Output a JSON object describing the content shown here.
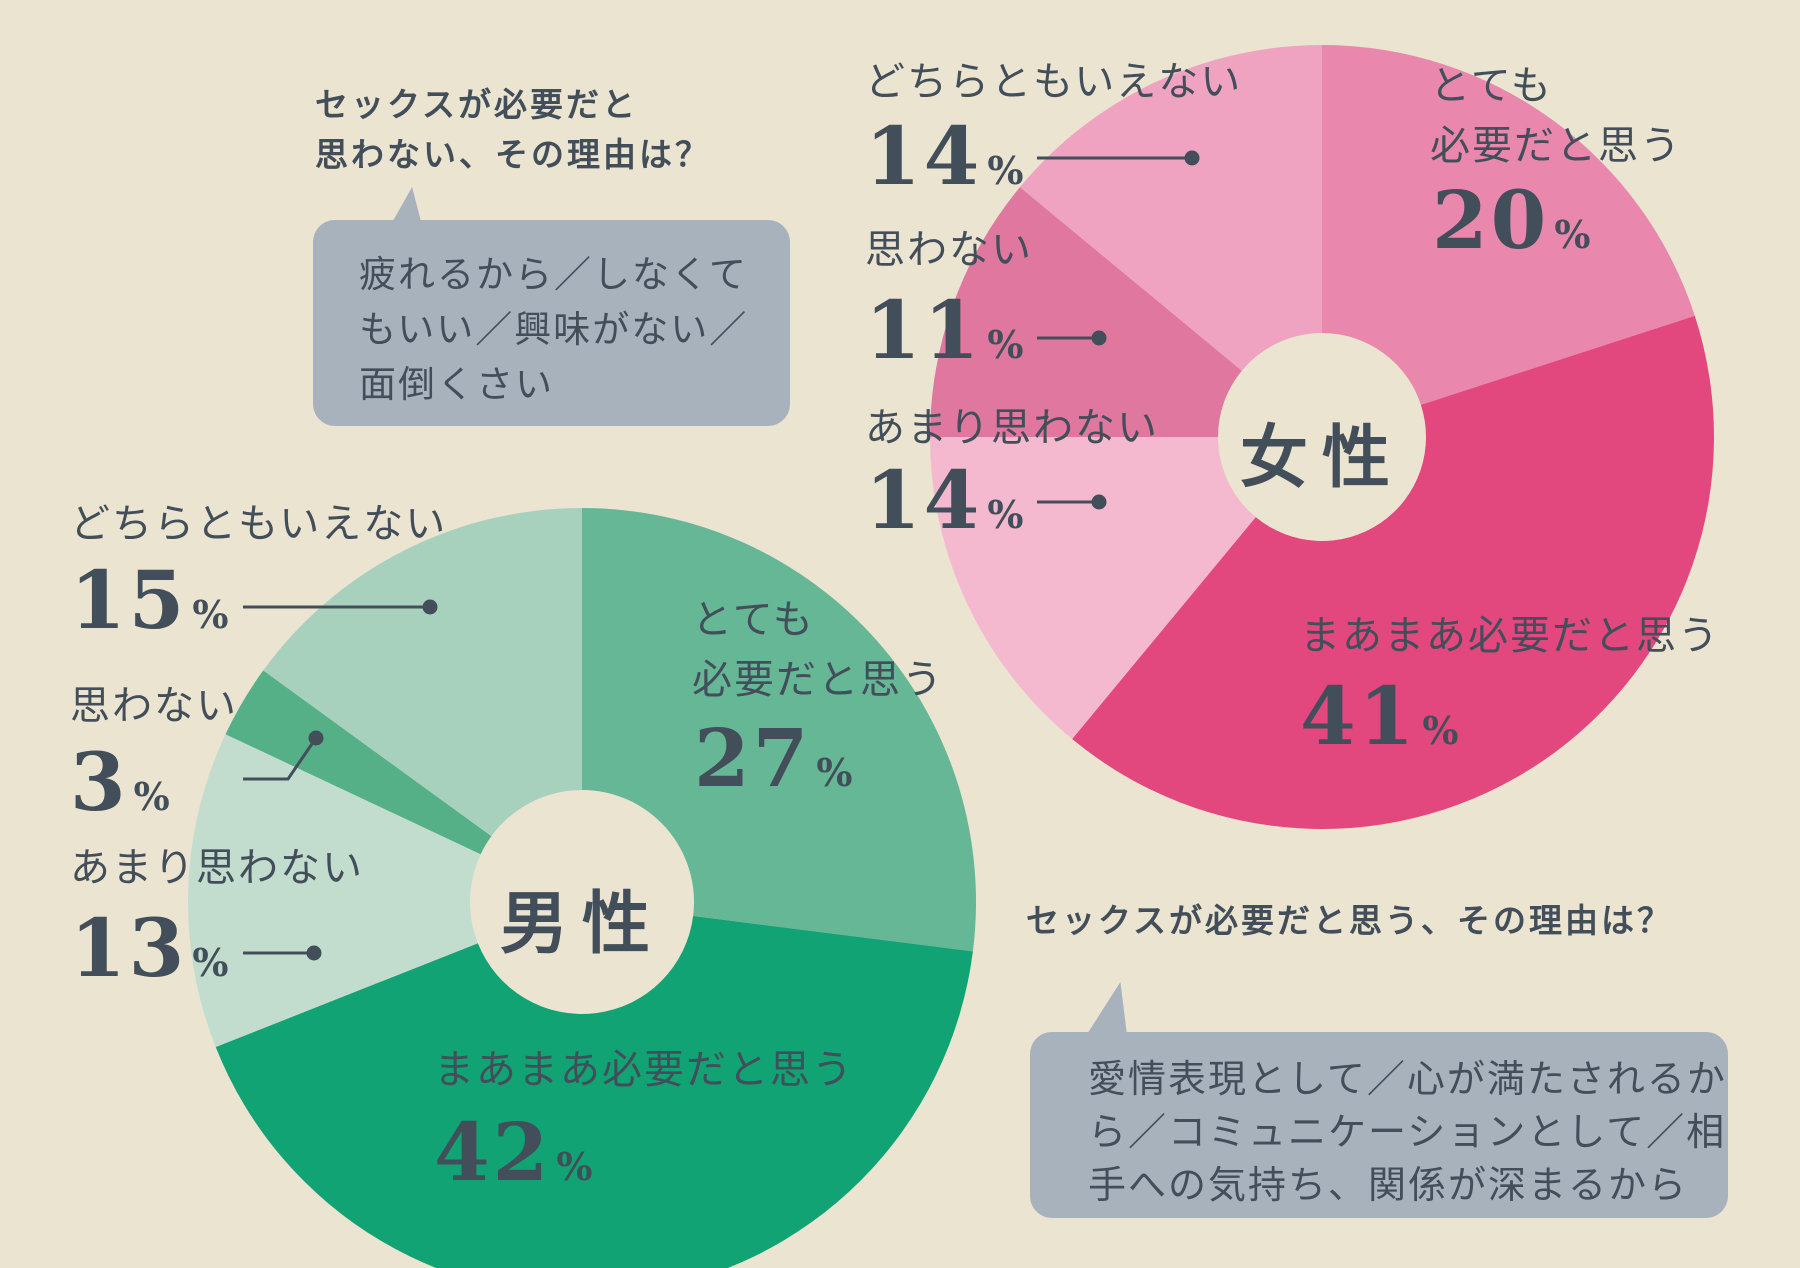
{
  "percent_sign": "%",
  "colors": {
    "background": "#ebe4d1",
    "text": "#424e59",
    "bubble": "#a8b2bd",
    "leader": "#424e59"
  },
  "chart_data": [
    {
      "type": "pie",
      "donut": true,
      "title": "女性",
      "start_angle_deg": 0,
      "direction": "clockwise",
      "labels": [
        "とても必要だと思う",
        "まあまあ必要だと思う",
        "あまり思わない",
        "思わない",
        "どちらともいえない"
      ],
      "values": [
        20,
        41,
        14,
        11,
        14
      ],
      "colors": [
        "#e987ac",
        "#e2477e",
        "#f4b9cf",
        "#e0779f",
        "#efa3c1"
      ]
    },
    {
      "type": "pie",
      "donut": true,
      "title": "男性",
      "start_angle_deg": 0,
      "direction": "clockwise",
      "labels": [
        "とても必要だと思う",
        "まあまあ必要だと思う",
        "あまり思わない",
        "思わない",
        "どちらともいえない"
      ],
      "values": [
        27,
        42,
        13,
        3,
        15
      ],
      "colors": [
        "#65b795",
        "#12a375",
        "#c2ddce",
        "#55b088",
        "#a8d1bd"
      ]
    }
  ],
  "annotations": {
    "totemo_line1": "とても",
    "totemo_line2": "必要だと思う"
  },
  "callouts": [
    {
      "title_line1": "セックスが必要だと",
      "title_line2": "思わない、その理由は？",
      "body_line1": "疲れるから／しなくて",
      "body_line2": "もいい／興味がない／",
      "body_line3": "面倒くさい"
    },
    {
      "title": "セックスが必要だと思う、その理由は？",
      "body_line1": "愛情表現として／心が満たされるか",
      "body_line2": "ら／コミュニケーションとして／相",
      "body_line3": "手への気持ち、関係が深まるから"
    }
  ]
}
